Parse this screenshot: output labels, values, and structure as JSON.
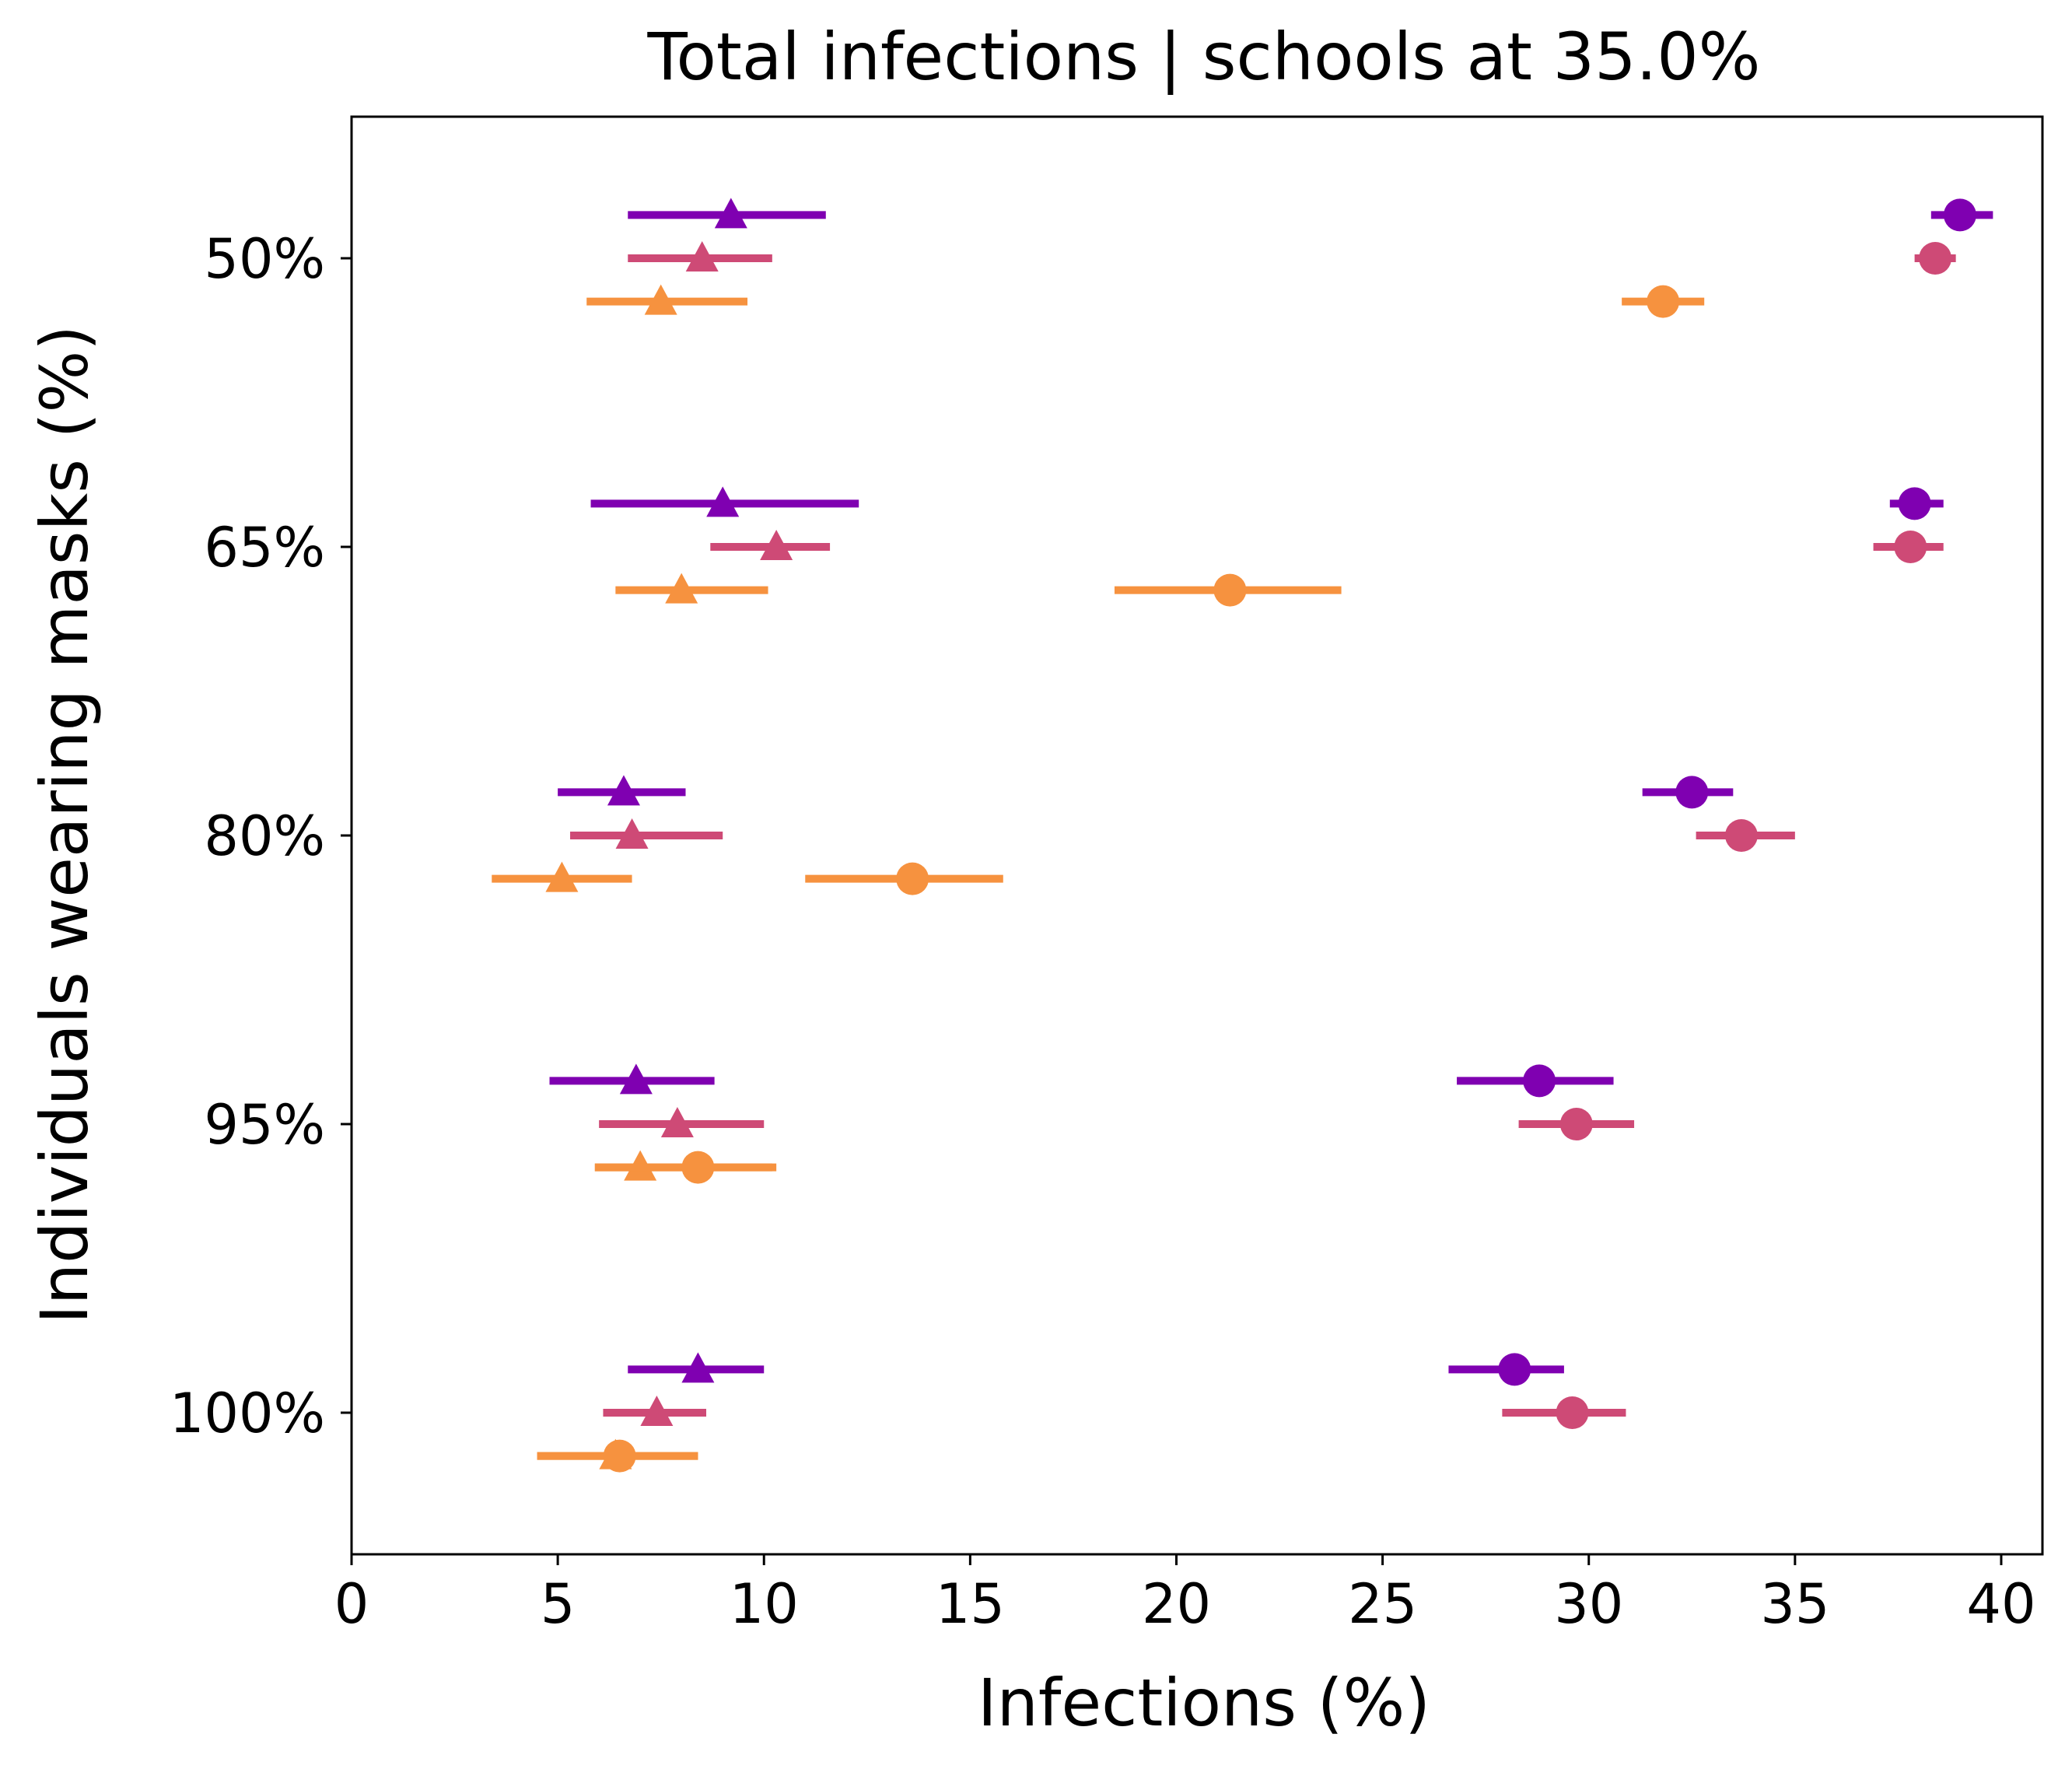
{
  "chart_data": {
    "type": "scatter",
    "title": "Total infections | schools at 35.0%",
    "xlabel": "Infections (%)",
    "ylabel": "Individuals wearing masks (%)",
    "xlim": [
      0,
      41
    ],
    "xticks": [
      "0",
      "5",
      "10",
      "15",
      "20",
      "25",
      "30",
      "35",
      "40"
    ],
    "categories": [
      "50%",
      "65%",
      "80%",
      "95%",
      "100%"
    ],
    "grid": false,
    "legend": "none",
    "series": [
      {
        "color": "#7f00b1",
        "marker": "triangle",
        "offset": -0.15,
        "values": [
          9.2,
          9.0,
          6.6,
          6.9,
          8.4
        ],
        "err": [
          [
            6.7,
            11.5
          ],
          [
            5.8,
            12.3
          ],
          [
            5.0,
            8.1
          ],
          [
            4.8,
            8.8
          ],
          [
            6.7,
            10.0
          ]
        ]
      },
      {
        "color": "#ce4a76",
        "marker": "triangle",
        "offset": 0,
        "values": [
          8.5,
          10.3,
          6.8,
          7.9,
          7.4
        ],
        "err": [
          [
            6.7,
            10.2
          ],
          [
            8.7,
            11.6
          ],
          [
            5.3,
            9.0
          ],
          [
            6.0,
            10.0
          ],
          [
            6.1,
            8.6
          ]
        ]
      },
      {
        "color": "#f6923f",
        "marker": "triangle",
        "offset": 0.15,
        "values": [
          7.5,
          8.0,
          5.1,
          7.0,
          6.4
        ],
        "err": [
          [
            5.7,
            9.6
          ],
          [
            6.4,
            10.1
          ],
          [
            3.4,
            6.8
          ],
          [
            5.9,
            10.2
          ],
          [
            4.5,
            8.4
          ]
        ]
      },
      {
        "color": "#7f00b1",
        "marker": "circle",
        "offset": -0.15,
        "values": [
          39.0,
          37.9,
          32.5,
          28.8,
          28.2
        ],
        "err": [
          [
            38.3,
            39.8
          ],
          [
            37.3,
            38.6
          ],
          [
            31.3,
            33.5
          ],
          [
            26.8,
            30.6
          ],
          [
            26.6,
            29.4
          ]
        ]
      },
      {
        "color": "#ce4a76",
        "marker": "circle",
        "offset": 0,
        "values": [
          38.4,
          37.8,
          33.7,
          29.7,
          29.6
        ],
        "err": [
          [
            37.9,
            38.9
          ],
          [
            36.9,
            38.6
          ],
          [
            32.6,
            35.0
          ],
          [
            28.3,
            31.1
          ],
          [
            27.9,
            30.9
          ]
        ]
      },
      {
        "color": "#f6923f",
        "marker": "circle",
        "offset": 0.15,
        "values": [
          31.8,
          21.3,
          13.6,
          8.4,
          6.5
        ],
        "err": [
          [
            30.8,
            32.8
          ],
          [
            18.5,
            24.0
          ],
          [
            11.0,
            15.8
          ],
          [
            5.9,
            10.3
          ],
          [
            4.5,
            8.4
          ]
        ]
      }
    ]
  }
}
